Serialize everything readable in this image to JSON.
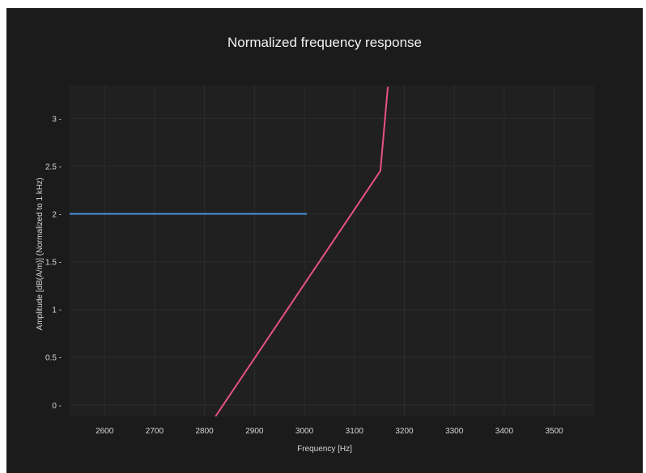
{
  "chart_data": {
    "type": "line",
    "title": "Normalized frequency response",
    "xlabel": "Frequency [Hz]",
    "ylabel": "Amplitude [dB(A/m)] (Normalized to 1 kHz)",
    "xlim": [
      2530,
      3580
    ],
    "ylim": [
      -0.12,
      3.35
    ],
    "x_ticks": [
      2600,
      2700,
      2800,
      2900,
      3000,
      3100,
      3200,
      3300,
      3400,
      3500
    ],
    "x_tick_labels": [
      "2600",
      "2700",
      "2800",
      "2900",
      "3000",
      "3100",
      "3200",
      "3300",
      "3400",
      "3500"
    ],
    "y_ticks": [
      0,
      0.5,
      1,
      1.5,
      2,
      2.5,
      3
    ],
    "y_tick_labels": [
      "0",
      "0.5",
      "1",
      "1.5",
      "2",
      "2.5",
      "3"
    ],
    "grid": true,
    "legend": "none",
    "series": [
      {
        "color": "#4a90e2",
        "x": [
          2530,
          3005
        ],
        "y": [
          2.0,
          2.0
        ]
      },
      {
        "color": "#e8527f",
        "x": [
          2822,
          3152,
          3167
        ],
        "y": [
          -0.12,
          2.45,
          3.33
        ]
      }
    ]
  },
  "colors": {
    "background": "#1b1b1b",
    "plot_background": "#202020",
    "grid": "#2c2c2c",
    "text": "#d8d8d8"
  }
}
